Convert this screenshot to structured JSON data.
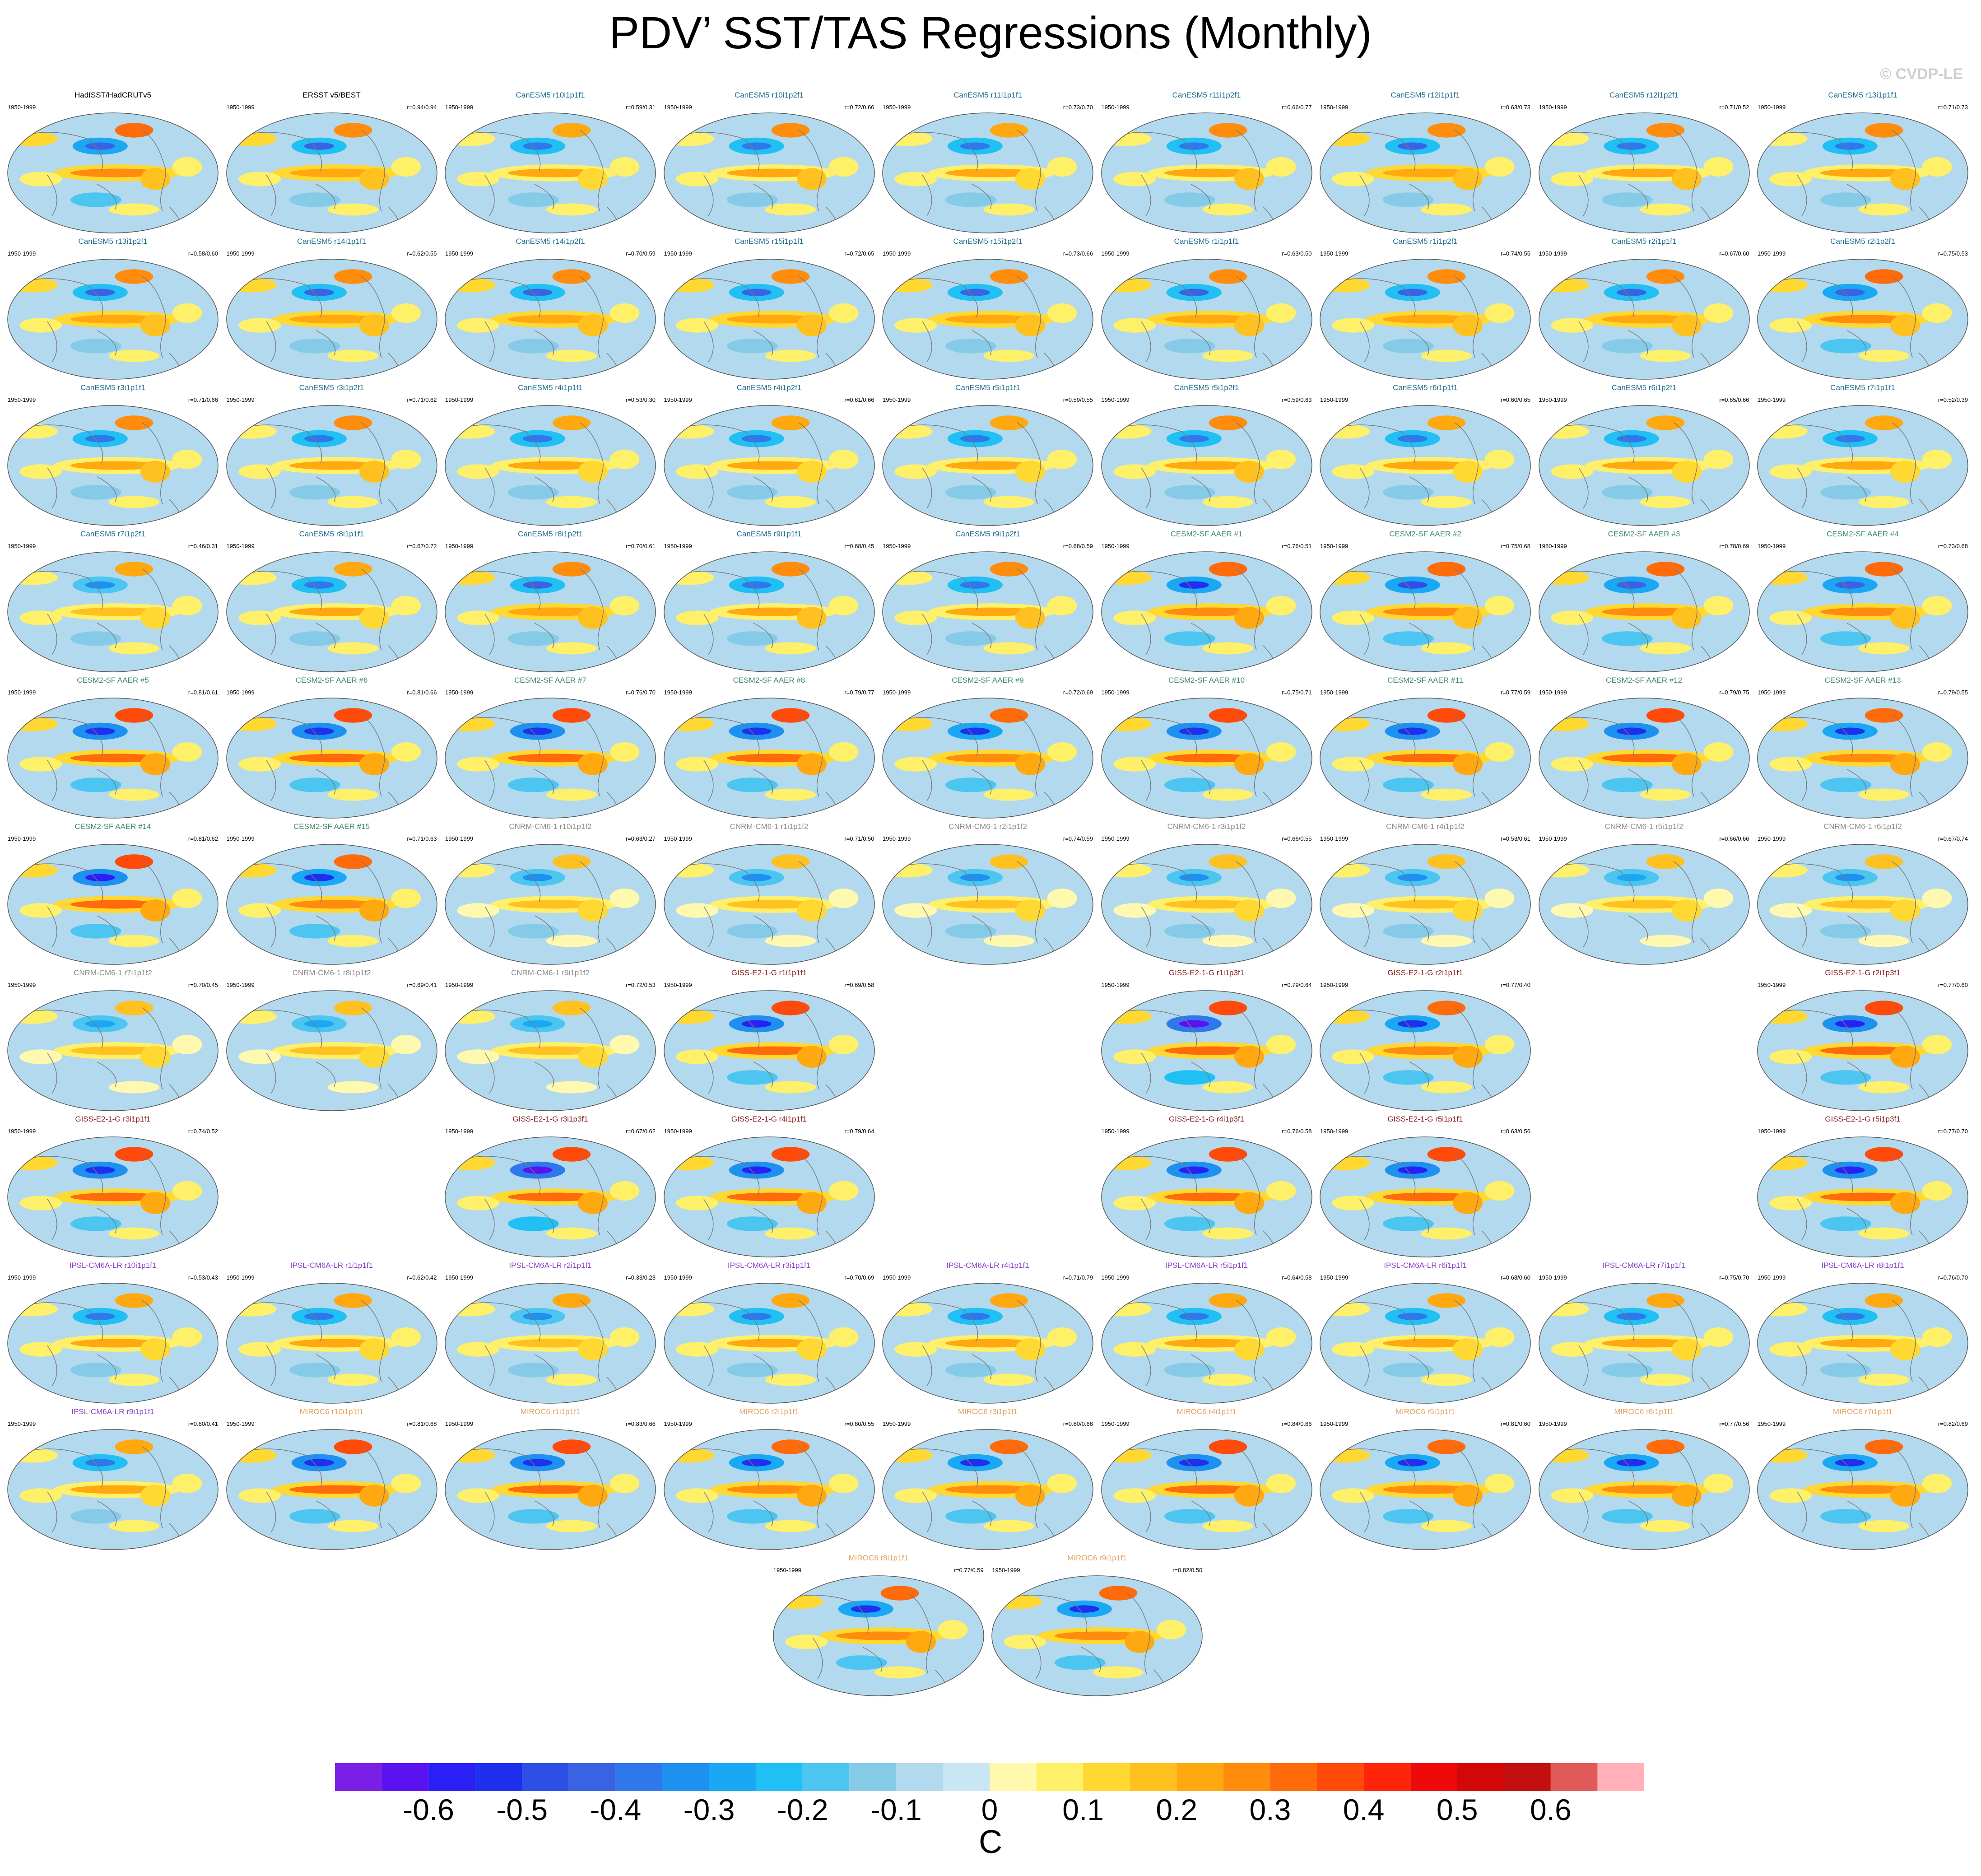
{
  "header": {
    "title": "PDV’ SST/TAS Regressions (Monthly)",
    "watermark": "© CVDP-LE"
  },
  "colors": {
    "title_obs": "#000000",
    "title_canesm5": "#1d6e8c",
    "title_cesm2": "#3f8a68",
    "title_cnrm": "#8c8c8c",
    "title_giss": "#8b1d1d",
    "title_ipsl": "#8b3fc8",
    "title_miroc": "#e8a060",
    "coastline": "#7a7a7a"
  },
  "chart_data": {
    "type": "heatmap",
    "title": "PDV’ SST/TAS Regressions (Monthly)",
    "units": "C",
    "projection": "Robinson (global)",
    "colorbar": {
      "levels": [
        -0.65,
        -0.6,
        -0.55,
        -0.5,
        -0.45,
        -0.4,
        -0.35,
        -0.3,
        -0.25,
        -0.2,
        -0.15,
        -0.1,
        -0.05,
        0,
        0.05,
        0.1,
        0.15,
        0.2,
        0.25,
        0.3,
        0.35,
        0.4,
        0.45,
        0.5,
        0.55,
        0.6,
        0.65
      ],
      "colors": [
        "#7b1fe6",
        "#5a12f0",
        "#2a1ff5",
        "#1f2fee",
        "#2d4fe6",
        "#3a63e4",
        "#2f78eb",
        "#1e90f0",
        "#1aa8f5",
        "#20bff4",
        "#4cc6f0",
        "#85cbe8",
        "#b3d9ef",
        "#c9e6f4",
        "#fff9b0",
        "#fff06a",
        "#ffd831",
        "#ffc11f",
        "#ffa810",
        "#ff8c0c",
        "#ff6a0a",
        "#ff4a0a",
        "#ff250a",
        "#ee0a0a",
        "#d20808",
        "#c21010",
        "#e05a5a",
        "#ffb0b8"
      ],
      "tick_labels": [
        "-0.6",
        "-0.5",
        "-0.4",
        "-0.3",
        "-0.2",
        "-0.1",
        "0",
        "0.1",
        "0.2",
        "0.3",
        "0.4",
        "0.5",
        "0.6"
      ],
      "tick_values": [
        -0.6,
        -0.5,
        -0.4,
        -0.3,
        -0.2,
        -0.1,
        0,
        0.1,
        0.2,
        0.3,
        0.4,
        0.5,
        0.6
      ]
    },
    "panels": [
      {
        "title": "HadISST/HadCRUTv5",
        "group": "obs",
        "period": "1950-1999",
        "r": "",
        "row": 0,
        "col": 0,
        "strength": 0.75
      },
      {
        "title": "ERSST v5/BEST",
        "group": "obs",
        "period": "1950-1999",
        "r": "r=0.94/0.94",
        "row": 0,
        "col": 1,
        "strength": 0.7
      },
      {
        "title": "CanESM5 r10i1p1f1",
        "group": "canesm5",
        "period": "1950-1999",
        "r": "r=0.59/0.31",
        "row": 0,
        "col": 2,
        "strength": 0.6
      },
      {
        "title": "CanESM5 r10i1p2f1",
        "group": "canesm5",
        "period": "1950-1999",
        "r": "r=0.72/0.66",
        "row": 0,
        "col": 3,
        "strength": 0.65
      },
      {
        "title": "CanESM5 r11i1p1f1",
        "group": "canesm5",
        "period": "1950-1999",
        "r": "r=0.73/0.70",
        "row": 0,
        "col": 4,
        "strength": 0.6
      },
      {
        "title": "CanESM5 r11i1p2f1",
        "group": "canesm5",
        "period": "1950-1999",
        "r": "r=0.66/0.77",
        "row": 0,
        "col": 5,
        "strength": 0.65
      },
      {
        "title": "CanESM5 r12i1p1f1",
        "group": "canesm5",
        "period": "1950-1999",
        "r": "r=0.63/0.73",
        "row": 0,
        "col": 6,
        "strength": 0.7
      },
      {
        "title": "CanESM5 r12i1p2f1",
        "group": "canesm5",
        "period": "1950-1999",
        "r": "r=0.71/0.52",
        "row": 0,
        "col": 7,
        "strength": 0.65
      },
      {
        "title": "CanESM5 r13i1p1f1",
        "group": "canesm5",
        "period": "1950-1999",
        "r": "r=0.71/0.73",
        "row": 0,
        "col": 8,
        "strength": 0.65
      },
      {
        "title": "CanESM5 r13i1p2f1",
        "group": "canesm5",
        "period": "1950-1999",
        "r": "r=0.58/0.60",
        "row": 1,
        "col": 0,
        "strength": 0.7
      },
      {
        "title": "CanESM5 r14i1p1f1",
        "group": "canesm5",
        "period": "1950-1999",
        "r": "r=0.62/0.55",
        "row": 1,
        "col": 1,
        "strength": 0.7
      },
      {
        "title": "CanESM5 r14i1p2f1",
        "group": "canesm5",
        "period": "1950-1999",
        "r": "r=0.70/0.59",
        "row": 1,
        "col": 2,
        "strength": 0.7
      },
      {
        "title": "CanESM5 r15i1p1f1",
        "group": "canesm5",
        "period": "1950-1999",
        "r": "r=0.72/0.65",
        "row": 1,
        "col": 3,
        "strength": 0.7
      },
      {
        "title": "CanESM5 r15i1p2f1",
        "group": "canesm5",
        "period": "1950-1999",
        "r": "r=0.73/0.66",
        "row": 1,
        "col": 4,
        "strength": 0.7
      },
      {
        "title": "CanESM5 r1i1p1f1",
        "group": "canesm5",
        "period": "1950-1999",
        "r": "r=0.63/0.50",
        "row": 1,
        "col": 5,
        "strength": 0.7
      },
      {
        "title": "CanESM5 r1i1p2f1",
        "group": "canesm5",
        "period": "1950-1999",
        "r": "r=0.74/0.55",
        "row": 1,
        "col": 6,
        "strength": 0.7
      },
      {
        "title": "CanESM5 r2i1p1f1",
        "group": "canesm5",
        "period": "1950-1999",
        "r": "r=0.67/0.60",
        "row": 1,
        "col": 7,
        "strength": 0.7
      },
      {
        "title": "CanESM5 r2i1p2f1",
        "group": "canesm5",
        "period": "1950-1999",
        "r": "r=0.75/0.53",
        "row": 1,
        "col": 8,
        "strength": 0.75
      },
      {
        "title": "CanESM5 r3i1p1f1",
        "group": "canesm5",
        "period": "1950-1999",
        "r": "r=0.71/0.66",
        "row": 2,
        "col": 0,
        "strength": 0.65
      },
      {
        "title": "CanESM5 r3i1p2f1",
        "group": "canesm5",
        "period": "1950-1999",
        "r": "r=0.71/0.62",
        "row": 2,
        "col": 1,
        "strength": 0.65
      },
      {
        "title": "CanESM5 r4i1p1f1",
        "group": "canesm5",
        "period": "1950-1999",
        "r": "r=0.53/0.30",
        "row": 2,
        "col": 2,
        "strength": 0.6
      },
      {
        "title": "CanESM5 r4i1p2f1",
        "group": "canesm5",
        "period": "1950-1999",
        "r": "r=0.61/0.66",
        "row": 2,
        "col": 3,
        "strength": 0.6
      },
      {
        "title": "CanESM5 r5i1p1f1",
        "group": "canesm5",
        "period": "1950-1999",
        "r": "r=0.59/0.55",
        "row": 2,
        "col": 4,
        "strength": 0.6
      },
      {
        "title": "CanESM5 r5i1p2f1",
        "group": "canesm5",
        "period": "1950-1999",
        "r": "r=0.59/0.63",
        "row": 2,
        "col": 5,
        "strength": 0.65
      },
      {
        "title": "CanESM5 r6i1p1f1",
        "group": "canesm5",
        "period": "1950-1999",
        "r": "r=0.60/0.65",
        "row": 2,
        "col": 6,
        "strength": 0.6
      },
      {
        "title": "CanESM5 r6i1p2f1",
        "group": "canesm5",
        "period": "1950-1999",
        "r": "r=0.65/0.66",
        "row": 2,
        "col": 7,
        "strength": 0.6
      },
      {
        "title": "CanESM5 r7i1p1f1",
        "group": "canesm5",
        "period": "1950-1999",
        "r": "r=0.52/0.39",
        "row": 2,
        "col": 8,
        "strength": 0.6
      },
      {
        "title": "CanESM5 r7i1p2f1",
        "group": "canesm5",
        "period": "1950-1999",
        "r": "r=0.46/0.31",
        "row": 3,
        "col": 0,
        "strength": 0.55
      },
      {
        "title": "CanESM5 r8i1p1f1",
        "group": "canesm5",
        "period": "1950-1999",
        "r": "r=0.67/0.72",
        "row": 3,
        "col": 1,
        "strength": 0.6
      },
      {
        "title": "CanESM5 r8i1p2f1",
        "group": "canesm5",
        "period": "1950-1999",
        "r": "r=0.70/0.61",
        "row": 3,
        "col": 2,
        "strength": 0.7
      },
      {
        "title": "CanESM5 r9i1p1f1",
        "group": "canesm5",
        "period": "1950-1999",
        "r": "r=0.68/0.45",
        "row": 3,
        "col": 3,
        "strength": 0.65
      },
      {
        "title": "CanESM5 r9i1p2f1",
        "group": "canesm5",
        "period": "1950-1999",
        "r": "r=0.68/0.59",
        "row": 3,
        "col": 4,
        "strength": 0.65
      },
      {
        "title": "CESM2-SF AAER #1",
        "group": "cesm2",
        "period": "1950-1999",
        "r": "r=0.76/0.51",
        "row": 3,
        "col": 5,
        "strength": 0.85
      },
      {
        "title": "CESM2-SF AAER #2",
        "group": "cesm2",
        "period": "1950-1999",
        "r": "r=0.75/0.68",
        "row": 3,
        "col": 6,
        "strength": 0.8
      },
      {
        "title": "CESM2-SF AAER #3",
        "group": "cesm2",
        "period": "1950-1999",
        "r": "r=0.78/0.69",
        "row": 3,
        "col": 7,
        "strength": 0.75
      },
      {
        "title": "CESM2-SF AAER #4",
        "group": "cesm2",
        "period": "1950-1999",
        "r": "r=0.73/0.68",
        "row": 3,
        "col": 8,
        "strength": 0.75
      },
      {
        "title": "CESM2-SF AAER #5",
        "group": "cesm2",
        "period": "1950-1999",
        "r": "r=0.81/0.61",
        "row": 4,
        "col": 0,
        "strength": 0.9
      },
      {
        "title": "CESM2-SF AAER #6",
        "group": "cesm2",
        "period": "1950-1999",
        "r": "r=0.81/0.66",
        "row": 4,
        "col": 1,
        "strength": 0.9
      },
      {
        "title": "CESM2-SF AAER #7",
        "group": "cesm2",
        "period": "1950-1999",
        "r": "r=0.76/0.70",
        "row": 4,
        "col": 2,
        "strength": 0.9
      },
      {
        "title": "CESM2-SF AAER #8",
        "group": "cesm2",
        "period": "1950-1999",
        "r": "r=0.79/0.77",
        "row": 4,
        "col": 3,
        "strength": 0.9
      },
      {
        "title": "CESM2-SF AAER #9",
        "group": "cesm2",
        "period": "1950-1999",
        "r": "r=0.72/0.69",
        "row": 4,
        "col": 4,
        "strength": 0.85
      },
      {
        "title": "CESM2-SF AAER #10",
        "group": "cesm2",
        "period": "1950-1999",
        "r": "r=0.75/0.71",
        "row": 4,
        "col": 5,
        "strength": 0.9
      },
      {
        "title": "CESM2-SF AAER #11",
        "group": "cesm2",
        "period": "1950-1999",
        "r": "r=0.77/0.59",
        "row": 4,
        "col": 6,
        "strength": 0.9
      },
      {
        "title": "CESM2-SF AAER #12",
        "group": "cesm2",
        "period": "1950-1999",
        "r": "r=0.79/0.75",
        "row": 4,
        "col": 7,
        "strength": 0.9
      },
      {
        "title": "CESM2-SF AAER #13",
        "group": "cesm2",
        "period": "1950-1999",
        "r": "r=0.79/0.55",
        "row": 4,
        "col": 8,
        "strength": 0.85
      },
      {
        "title": "CESM2-SF AAER #14",
        "group": "cesm2",
        "period": "1950-1999",
        "r": "r=0.81/0.62",
        "row": 5,
        "col": 0,
        "strength": 0.95
      },
      {
        "title": "CESM2-SF AAER #15",
        "group": "cesm2",
        "period": "1950-1999",
        "r": "r=0.71/0.63",
        "row": 5,
        "col": 1,
        "strength": 0.85
      },
      {
        "title": "CNRM-CM6-1 r10i1p1f2",
        "group": "cnrm",
        "period": "1950-1999",
        "r": "r=0.63/0.27",
        "row": 5,
        "col": 2,
        "strength": 0.5
      },
      {
        "title": "CNRM-CM6-1 r1i1p1f2",
        "group": "cnrm",
        "period": "1950-1999",
        "r": "r=0.71/0.50",
        "row": 5,
        "col": 3,
        "strength": 0.5
      },
      {
        "title": "CNRM-CM6-1 r2i1p1f2",
        "group": "cnrm",
        "period": "1950-1999",
        "r": "r=0.74/0.59",
        "row": 5,
        "col": 4,
        "strength": 0.5
      },
      {
        "title": "CNRM-CM6-1 r3i1p1f2",
        "group": "cnrm",
        "period": "1950-1999",
        "r": "r=0.66/0.55",
        "row": 5,
        "col": 5,
        "strength": 0.5
      },
      {
        "title": "CNRM-CM6-1 r4i1p1f2",
        "group": "cnrm",
        "period": "1950-1999",
        "r": "r=0.53/0.61",
        "row": 5,
        "col": 6,
        "strength": 0.5
      },
      {
        "title": "CNRM-CM6-1 r5i1p1f2",
        "group": "cnrm",
        "period": "1950-1999",
        "r": "r=0.66/0.66",
        "row": 5,
        "col": 7,
        "strength": 0.45
      },
      {
        "title": "CNRM-CM6-1 r6i1p1f2",
        "group": "cnrm",
        "period": "1950-1999",
        "r": "r=0.67/0.74",
        "row": 5,
        "col": 8,
        "strength": 0.5
      },
      {
        "title": "CNRM-CM6-1 r7i1p1f2",
        "group": "cnrm",
        "period": "1950-1999",
        "r": "r=0.70/0.45",
        "row": 6,
        "col": 0,
        "strength": 0.45
      },
      {
        "title": "CNRM-CM6-1 r8i1p1f2",
        "group": "cnrm",
        "period": "1950-1999",
        "r": "r=0.69/0.41",
        "row": 6,
        "col": 1,
        "strength": 0.45
      },
      {
        "title": "CNRM-CM6-1 r9i1p1f2",
        "group": "cnrm",
        "period": "1950-1999",
        "r": "r=0.72/0.53",
        "row": 6,
        "col": 2,
        "strength": 0.45
      },
      {
        "title": "GISS-E2-1-G r1i1p1f1",
        "group": "giss",
        "period": "1950-1999",
        "r": "r=0.69/0.58",
        "row": 6,
        "col": 3,
        "strength": 0.95
      },
      {
        "title": "GISS-E2-1-G r1i1p3f1",
        "group": "giss",
        "period": "1950-1999",
        "r": "r=0.79/0.64",
        "row": 6,
        "col": 5,
        "strength": 1.0
      },
      {
        "title": "GISS-E2-1-G r2i1p1f1",
        "group": "giss",
        "period": "1950-1999",
        "r": "r=0.77/0.40",
        "row": 6,
        "col": 6,
        "strength": 0.85
      },
      {
        "title": "GISS-E2-1-G r2i1p3f1",
        "group": "giss",
        "period": "1950-1999",
        "r": "r=0.77/0.60",
        "row": 6,
        "col": 8,
        "strength": 0.95
      },
      {
        "title": "GISS-E2-1-G r3i1p1f1",
        "group": "giss",
        "period": "1950-1999",
        "r": "r=0.74/0.52",
        "row": 7,
        "col": 0,
        "strength": 0.9
      },
      {
        "title": "GISS-E2-1-G r3i1p3f1",
        "group": "giss",
        "period": "1950-1999",
        "r": "r=0.67/0.62",
        "row": 7,
        "col": 2,
        "strength": 1.0
      },
      {
        "title": "GISS-E2-1-G r4i1p1f1",
        "group": "giss",
        "period": "1950-1999",
        "r": "r=0.79/0.64",
        "row": 7,
        "col": 3,
        "strength": 0.95
      },
      {
        "title": "GISS-E2-1-G r4i1p3f1",
        "group": "giss",
        "period": "1950-1999",
        "r": "r=0.76/0.58",
        "row": 7,
        "col": 5,
        "strength": 0.95
      },
      {
        "title": "GISS-E2-1-G r5i1p1f1",
        "group": "giss",
        "period": "1950-1999",
        "r": "r=0.63/0.56",
        "row": 7,
        "col": 6,
        "strength": 0.95
      },
      {
        "title": "GISS-E2-1-G r5i1p3f1",
        "group": "giss",
        "period": "1950-1999",
        "r": "r=0.77/0.70",
        "row": 7,
        "col": 8,
        "strength": 0.95
      },
      {
        "title": "IPSL-CM6A-LR r10i1p1f1",
        "group": "ipsl",
        "period": "1950-1999",
        "r": "r=0.53/0.43",
        "row": 8,
        "col": 0,
        "strength": 0.6
      },
      {
        "title": "IPSL-CM6A-LR r1i1p1f1",
        "group": "ipsl",
        "period": "1950-1999",
        "r": "r=0.62/0.42",
        "row": 8,
        "col": 1,
        "strength": 0.6
      },
      {
        "title": "IPSL-CM6A-LR r2i1p1f1",
        "group": "ipsl",
        "period": "1950-1999",
        "r": "r=0.33/0.23",
        "row": 8,
        "col": 2,
        "strength": 0.55
      },
      {
        "title": "IPSL-CM6A-LR r3i1p1f1",
        "group": "ipsl",
        "period": "1950-1999",
        "r": "r=0.70/0.69",
        "row": 8,
        "col": 3,
        "strength": 0.6
      },
      {
        "title": "IPSL-CM6A-LR r4i1p1f1",
        "group": "ipsl",
        "period": "1950-1999",
        "r": "r=0.71/0.79",
        "row": 8,
        "col": 4,
        "strength": 0.6
      },
      {
        "title": "IPSL-CM6A-LR r5i1p1f1",
        "group": "ipsl",
        "period": "1950-1999",
        "r": "r=0.64/0.58",
        "row": 8,
        "col": 5,
        "strength": 0.6
      },
      {
        "title": "IPSL-CM6A-LR r6i1p1f1",
        "group": "ipsl",
        "period": "1950-1999",
        "r": "r=0.68/0.60",
        "row": 8,
        "col": 6,
        "strength": 0.6
      },
      {
        "title": "IPSL-CM6A-LR r7i1p1f1",
        "group": "ipsl",
        "period": "1950-1999",
        "r": "r=0.75/0.70",
        "row": 8,
        "col": 7,
        "strength": 0.6
      },
      {
        "title": "IPSL-CM6A-LR r8i1p1f1",
        "group": "ipsl",
        "period": "1950-1999",
        "r": "r=0.76/0.70",
        "row": 8,
        "col": 8,
        "strength": 0.6
      },
      {
        "title": "IPSL-CM6A-LR r9i1p1f1",
        "group": "ipsl",
        "period": "1950-1999",
        "r": "r=0.60/0.41",
        "row": 9,
        "col": 0,
        "strength": 0.6
      },
      {
        "title": "MIROC6 r10i1p1f1",
        "group": "miroc",
        "period": "1950-1999",
        "r": "r=0.81/0.68",
        "row": 9,
        "col": 1,
        "strength": 0.9
      },
      {
        "title": "MIROC6 r1i1p1f1",
        "group": "miroc",
        "period": "1950-1999",
        "r": "r=0.83/0.66",
        "row": 9,
        "col": 2,
        "strength": 0.9
      },
      {
        "title": "MIROC6 r2i1p1f1",
        "group": "miroc",
        "period": "1950-1999",
        "r": "r=0.80/0.55",
        "row": 9,
        "col": 3,
        "strength": 0.85
      },
      {
        "title": "MIROC6 r3i1p1f1",
        "group": "miroc",
        "period": "1950-1999",
        "r": "r=0.80/0.68",
        "row": 9,
        "col": 4,
        "strength": 0.85
      },
      {
        "title": "MIROC6 r4i1p1f1",
        "group": "miroc",
        "period": "1950-1999",
        "r": "r=0.84/0.66",
        "row": 9,
        "col": 5,
        "strength": 0.9
      },
      {
        "title": "MIROC6 r5i1p1f1",
        "group": "miroc",
        "period": "1950-1999",
        "r": "r=0.81/0.60",
        "row": 9,
        "col": 6,
        "strength": 0.85
      },
      {
        "title": "MIROC6 r6i1p1f1",
        "group": "miroc",
        "period": "1950-1999",
        "r": "r=0.77/0.56",
        "row": 9,
        "col": 7,
        "strength": 0.85
      },
      {
        "title": "MIROC6 r7i1p1f1",
        "group": "miroc",
        "period": "1950-1999",
        "r": "r=0.82/0.69",
        "row": 9,
        "col": 8,
        "strength": 0.85
      },
      {
        "title": "MIROC6 r8i1p1f1",
        "group": "miroc",
        "period": "1950-1999",
        "r": "r=0.77/0.59",
        "row": 10,
        "col": 3.5,
        "strength": 0.85
      },
      {
        "title": "MIROC6 r9i1p1f1",
        "group": "miroc",
        "period": "1950-1999",
        "r": "r=0.82/0.50",
        "row": 10,
        "col": 4.5,
        "strength": 0.85
      }
    ]
  }
}
